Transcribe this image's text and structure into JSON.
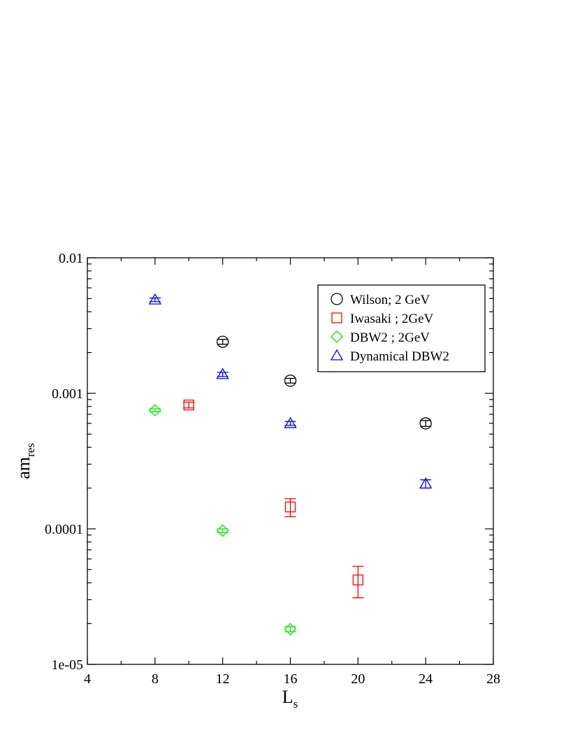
{
  "chart_data": {
    "type": "scatter",
    "xlabel": "L",
    "xlabel_sub": "s",
    "ylabel": "am",
    "ylabel_sub": "res",
    "xlim": [
      4,
      28
    ],
    "ylim": [
      1e-05,
      0.01
    ],
    "yscale": "log",
    "xticks": [
      4,
      8,
      12,
      16,
      20,
      24,
      28
    ],
    "xtick_labels": [
      "4",
      "8",
      "12",
      "16",
      "20",
      "24",
      "28"
    ],
    "yticks": [
      1e-05,
      0.0001,
      0.001,
      0.01
    ],
    "ytick_labels": [
      "1e-05",
      "0.0001",
      "0.001",
      "0.01"
    ],
    "grid": false,
    "legend_position": "top-right",
    "series": [
      {
        "name": "Wilson; 2 GeV",
        "marker": "circle",
        "color": "#000000",
        "points": [
          {
            "x": 12,
            "y": 0.0024,
            "err": 0.0001
          },
          {
            "x": 16,
            "y": 0.00124,
            "err": 5e-05
          },
          {
            "x": 24,
            "y": 0.0006,
            "err": 3e-05
          }
        ]
      },
      {
        "name": "Iwasaki ; 2GeV",
        "marker": "square",
        "color": "#ff0000",
        "points": [
          {
            "x": 10,
            "y": 0.00082,
            "err": 4e-05
          },
          {
            "x": 16,
            "y": 0.000145,
            "err": 2.2e-05
          },
          {
            "x": 20,
            "y": 4.2e-05,
            "err": 1.1e-05
          }
        ]
      },
      {
        "name": "DBW2 ; 2GeV",
        "marker": "diamond",
        "color": "#00ee00",
        "points": [
          {
            "x": 8,
            "y": 0.00075,
            "err": 2e-05
          },
          {
            "x": 12,
            "y": 9.7e-05,
            "err": 3e-06
          },
          {
            "x": 16,
            "y": 1.82e-05,
            "err": 8e-07
          }
        ]
      },
      {
        "name": "Dynamical DBW2",
        "marker": "triangle",
        "color": "#0000ff",
        "points": [
          {
            "x": 8,
            "y": 0.0049,
            "err": 0.00015
          },
          {
            "x": 12,
            "y": 0.00138,
            "err": 5e-05
          },
          {
            "x": 16,
            "y": 0.0006,
            "err": 2e-05
          },
          {
            "x": 24,
            "y": 0.000215,
            "err": 1.5e-05
          }
        ]
      }
    ]
  }
}
